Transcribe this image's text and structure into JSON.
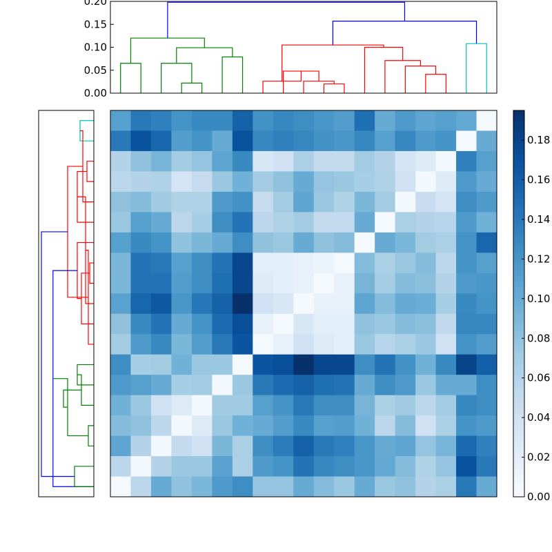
{
  "chart_data": [
    {
      "type": "dendrogram",
      "orientation": "top",
      "ylim": [
        0,
        0.2
      ],
      "yticks": [
        "0.00",
        "0.05",
        "0.10",
        "0.15",
        "0.20"
      ],
      "leaf_count": 19,
      "merges": [
        {
          "a": 0,
          "b": 1,
          "h": 0.065,
          "color": "#008000"
        },
        {
          "a": 3,
          "b": 4,
          "h": 0.022,
          "color": "#008000"
        },
        {
          "a": 2,
          "b": 20,
          "h": 0.065,
          "color": "#008000"
        },
        {
          "a": 5,
          "b": 6,
          "h": 0.079,
          "color": "#008000"
        },
        {
          "a": 21,
          "b": 22,
          "h": 0.099,
          "color": "#008000"
        },
        {
          "a": 19,
          "b": 23,
          "h": 0.12,
          "color": "#008000"
        },
        {
          "a": 10,
          "b": 11,
          "h": 0.02,
          "color": "#ff0000"
        },
        {
          "a": 9,
          "b": 25,
          "h": 0.026,
          "color": "#ff0000"
        },
        {
          "a": 8,
          "b": 26,
          "h": 0.048,
          "color": "#ff0000"
        },
        {
          "a": 7,
          "b": 27,
          "h": 0.026,
          "color": "#ff0000"
        },
        {
          "a": 15,
          "b": 16,
          "h": 0.041,
          "color": "#ff0000"
        },
        {
          "a": 14,
          "b": 29,
          "h": 0.059,
          "color": "#ff0000"
        },
        {
          "a": 13,
          "b": 30,
          "h": 0.071,
          "color": "#ff0000"
        },
        {
          "a": 12,
          "b": 31,
          "h": 0.1,
          "color": "#ff0000"
        },
        {
          "a": 28,
          "b": 32,
          "h": 0.105,
          "color": "#ff0000"
        },
        {
          "a": 17,
          "b": 18,
          "h": 0.108,
          "color": "#00bfbf"
        },
        {
          "a": 33,
          "b": 34,
          "h": 0.157,
          "color": "#0000ff"
        },
        {
          "a": 24,
          "b": 35,
          "h": 0.198,
          "color": "#0000ff"
        }
      ]
    },
    {
      "type": "dendrogram",
      "orientation": "left",
      "leaf_count": 19,
      "merges": [
        {
          "a": 0,
          "b": 1,
          "h": 0.05,
          "color": "#00bfbf"
        },
        {
          "a": 2,
          "b": 3,
          "h": 0.025,
          "color": "#ff0000"
        },
        {
          "a": 19,
          "b": 4,
          "h": 0.04,
          "color": "#ff0000"
        },
        {
          "a": 20,
          "b": 5,
          "h": 0.06,
          "color": "#ff0000"
        },
        {
          "a": 7,
          "b": 8,
          "h": 0.015,
          "color": "#ff0000"
        },
        {
          "a": 22,
          "b": 9,
          "h": 0.03,
          "color": "#ff0000"
        },
        {
          "a": 23,
          "b": 10,
          "h": 0.045,
          "color": "#ff0000"
        },
        {
          "a": 24,
          "b": 11,
          "h": 0.02,
          "color": "#ff0000"
        },
        {
          "a": 6,
          "b": 25,
          "h": 0.06,
          "color": "#ff0000"
        },
        {
          "a": 21,
          "b": 26,
          "h": 0.095,
          "color": "#ff0000"
        },
        {
          "a": 18,
          "b": 27,
          "h": 0.148,
          "color": "#0000ff"
        },
        {
          "a": 12,
          "b": 13,
          "h": 0.06,
          "color": "#008000"
        },
        {
          "a": 15,
          "b": 16,
          "h": 0.02,
          "color": "#008000"
        },
        {
          "a": 14,
          "b": 30,
          "h": 0.045,
          "color": "#008000"
        },
        {
          "a": 29,
          "b": 31,
          "h": 0.095,
          "color": "#008000"
        },
        {
          "a": 17,
          "b": 18,
          "h": 0.07,
          "color": "#008000"
        },
        {
          "a": 32,
          "b": 33,
          "h": 0.11,
          "color": "#008000"
        },
        {
          "a": 28,
          "b": 34,
          "h": 0.19,
          "color": "#0000ff"
        }
      ]
    },
    {
      "type": "heatmap",
      "rows": 19,
      "cols": 19,
      "vmin": 0,
      "vmax": 0.195,
      "colormap": "Blues",
      "values": [
        [
          0.11,
          0.14,
          0.135,
          0.12,
          0.128,
          0.128,
          0.158,
          0.122,
          0.13,
          0.125,
          0.118,
          0.112,
          0.148,
          0.1,
          0.115,
          0.105,
          0.11,
          0.103,
          0.003
        ],
        [
          0.14,
          0.17,
          0.155,
          0.112,
          0.12,
          0.1,
          0.17,
          0.13,
          0.135,
          0.13,
          0.122,
          0.118,
          0.13,
          0.11,
          0.13,
          0.115,
          0.12,
          0.003,
          0.1
        ],
        [
          0.06,
          0.08,
          0.092,
          0.07,
          0.078,
          0.105,
          0.128,
          0.03,
          0.04,
          0.065,
          0.05,
          0.05,
          0.07,
          0.06,
          0.035,
          0.025,
          0.005,
          0.135,
          0.11
        ],
        [
          0.055,
          0.06,
          0.062,
          0.035,
          0.048,
          0.075,
          0.095,
          0.07,
          0.08,
          0.1,
          0.078,
          0.075,
          0.068,
          0.062,
          0.04,
          0.005,
          0.025,
          0.115,
          0.1
        ],
        [
          0.08,
          0.085,
          0.072,
          0.062,
          0.062,
          0.115,
          0.122,
          0.048,
          0.07,
          0.105,
          0.075,
          0.062,
          0.09,
          0.07,
          0.005,
          0.045,
          0.035,
          0.125,
          0.115
        ],
        [
          0.075,
          0.11,
          0.1,
          0.055,
          0.068,
          0.125,
          0.145,
          0.055,
          0.062,
          0.07,
          0.05,
          0.05,
          0.1,
          0.003,
          0.065,
          0.06,
          0.058,
          0.115,
          0.095
        ],
        [
          0.11,
          0.128,
          0.12,
          0.08,
          0.09,
          0.1,
          0.125,
          0.08,
          0.075,
          0.1,
          0.08,
          0.085,
          0.003,
          0.1,
          0.09,
          0.07,
          0.065,
          0.12,
          0.155
        ],
        [
          0.09,
          0.145,
          0.14,
          0.11,
          0.125,
          0.145,
          0.178,
          0.02,
          0.02,
          0.015,
          0.012,
          0.003,
          0.085,
          0.065,
          0.075,
          0.085,
          0.055,
          0.12,
          0.11
        ],
        [
          0.09,
          0.145,
          0.145,
          0.112,
          0.125,
          0.148,
          0.178,
          0.025,
          0.02,
          0.015,
          0.003,
          0.015,
          0.092,
          0.068,
          0.085,
          0.082,
          0.06,
          0.115,
          0.118
        ],
        [
          0.108,
          0.155,
          0.165,
          0.118,
          0.142,
          0.158,
          0.195,
          0.04,
          0.03,
          0.003,
          0.015,
          0.015,
          0.105,
          0.085,
          0.1,
          0.098,
          0.068,
          0.128,
          0.12
        ],
        [
          0.08,
          0.128,
          0.145,
          0.1,
          0.12,
          0.15,
          0.172,
          0.015,
          0.003,
          0.03,
          0.02,
          0.02,
          0.08,
          0.075,
          0.085,
          0.082,
          0.052,
          0.13,
          0.13
        ],
        [
          0.07,
          0.115,
          0.128,
          0.09,
          0.112,
          0.14,
          0.168,
          0.003,
          0.015,
          0.04,
          0.025,
          0.02,
          0.075,
          0.058,
          0.065,
          0.075,
          0.04,
          0.12,
          0.112
        ],
        [
          0.125,
          0.068,
          0.07,
          0.095,
          0.075,
          0.075,
          0.003,
          0.168,
          0.172,
          0.195,
          0.178,
          0.178,
          0.125,
          0.145,
          0.122,
          0.095,
          0.128,
          0.18,
          0.16
        ],
        [
          0.115,
          0.11,
          0.1,
          0.068,
          0.07,
          0.005,
          0.075,
          0.14,
          0.15,
          0.158,
          0.148,
          0.145,
          0.1,
          0.125,
          0.115,
          0.075,
          0.1,
          0.1,
          0.125
        ],
        [
          0.095,
          0.075,
          0.04,
          0.025,
          0.005,
          0.072,
          0.072,
          0.11,
          0.12,
          0.14,
          0.125,
          0.125,
          0.092,
          0.065,
          0.072,
          0.055,
          0.07,
          0.13,
          0.125
        ],
        [
          0.085,
          0.08,
          0.055,
          0.005,
          0.025,
          0.075,
          0.095,
          0.1,
          0.112,
          0.128,
          0.11,
          0.112,
          0.095,
          0.055,
          0.085,
          0.04,
          0.065,
          0.12,
          0.115
        ],
        [
          0.105,
          0.06,
          0.005,
          0.05,
          0.04,
          0.09,
          0.065,
          0.125,
          0.138,
          0.158,
          0.14,
          0.135,
          0.118,
          0.1,
          0.105,
          0.078,
          0.092,
          0.152,
          0.135
        ],
        [
          0.055,
          0.005,
          0.06,
          0.075,
          0.075,
          0.108,
          0.065,
          0.115,
          0.12,
          0.145,
          0.13,
          0.125,
          0.118,
          0.102,
          0.085,
          0.062,
          0.078,
          0.17,
          0.14
        ],
        [
          0.003,
          0.055,
          0.1,
          0.08,
          0.09,
          0.115,
          0.125,
          0.078,
          0.078,
          0.1,
          0.085,
          0.075,
          0.1,
          0.075,
          0.08,
          0.06,
          0.065,
          0.14,
          0.1
        ]
      ]
    },
    {
      "type": "colorbar",
      "colormap": "Blues",
      "vmin": 0,
      "vmax": 0.195,
      "ticks": [
        "0.00",
        "0.02",
        "0.04",
        "0.06",
        "0.08",
        "0.10",
        "0.12",
        "0.14",
        "0.16",
        "0.18"
      ]
    }
  ]
}
